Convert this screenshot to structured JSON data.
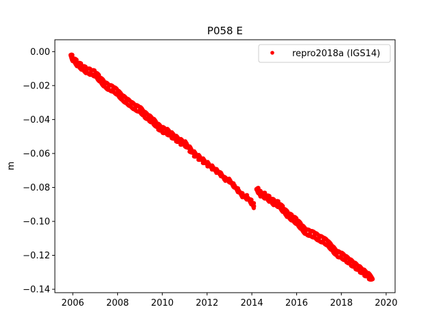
{
  "chart_data": {
    "type": "scatter",
    "title": "P058 E",
    "xlabel": "",
    "ylabel": "m",
    "xlim": [
      2005.2,
      2020.4
    ],
    "ylim": [
      -0.142,
      0.007
    ],
    "xticks": [
      2006,
      2008,
      2010,
      2012,
      2014,
      2016,
      2018,
      2020
    ],
    "xtick_labels": [
      "2006",
      "2008",
      "2010",
      "2012",
      "2014",
      "2016",
      "2018",
      "2020"
    ],
    "yticks": [
      0.0,
      -0.02,
      -0.04,
      -0.06,
      -0.08,
      -0.1,
      -0.12,
      -0.14
    ],
    "ytick_labels": [
      "0.00",
      "−0.02",
      "−0.04",
      "−0.06",
      "−0.08",
      "−0.10",
      "−0.12",
      "−0.14"
    ],
    "grid": false,
    "legend_position": "top-right",
    "series": [
      {
        "name": "repro2018a (IGS14)",
        "color": "#ff0000",
        "marker": "point",
        "x": [
          2005.9,
          2006.0,
          2006.2,
          2006.4,
          2006.6,
          2006.8,
          2007.0,
          2007.2,
          2007.4,
          2007.6,
          2007.8,
          2008.0,
          2008.2,
          2008.4,
          2008.6,
          2008.8,
          2009.0,
          2009.2,
          2009.4,
          2009.6,
          2009.8,
          2010.0,
          2010.2,
          2010.4,
          2010.6,
          2010.8,
          2011.0,
          2011.2,
          2011.4,
          2011.6,
          2011.8,
          2012.0,
          2012.2,
          2012.4,
          2012.6,
          2012.8,
          2013.0,
          2013.2,
          2013.4,
          2013.6,
          2013.8,
          2014.0,
          2014.1,
          2014.2,
          2014.3,
          2014.4,
          2014.6,
          2014.8,
          2015.0,
          2015.2,
          2015.4,
          2015.6,
          2015.8,
          2016.0,
          2016.2,
          2016.4,
          2016.6,
          2016.8,
          2017.0,
          2017.2,
          2017.4,
          2017.6,
          2017.8,
          2018.0,
          2018.2,
          2018.4,
          2018.6,
          2018.8,
          2019.0,
          2019.2,
          2019.4
        ],
        "y": [
          -0.002,
          -0.004,
          -0.007,
          -0.009,
          -0.011,
          -0.012,
          -0.013,
          -0.016,
          -0.019,
          -0.021,
          -0.022,
          -0.024,
          -0.027,
          -0.029,
          -0.031,
          -0.033,
          -0.034,
          -0.037,
          -0.039,
          -0.041,
          -0.044,
          -0.046,
          -0.047,
          -0.049,
          -0.051,
          -0.053,
          -0.054,
          -0.057,
          -0.06,
          -0.062,
          -0.064,
          -0.066,
          -0.068,
          -0.07,
          -0.072,
          -0.075,
          -0.076,
          -0.079,
          -0.082,
          -0.085,
          -0.086,
          -0.089,
          -0.091,
          -0.081,
          -0.082,
          -0.084,
          -0.085,
          -0.087,
          -0.089,
          -0.09,
          -0.093,
          -0.096,
          -0.098,
          -0.1,
          -0.103,
          -0.106,
          -0.107,
          -0.108,
          -0.11,
          -0.111,
          -0.113,
          -0.116,
          -0.119,
          -0.12,
          -0.122,
          -0.124,
          -0.126,
          -0.128,
          -0.13,
          -0.132,
          -0.134
        ]
      }
    ]
  }
}
